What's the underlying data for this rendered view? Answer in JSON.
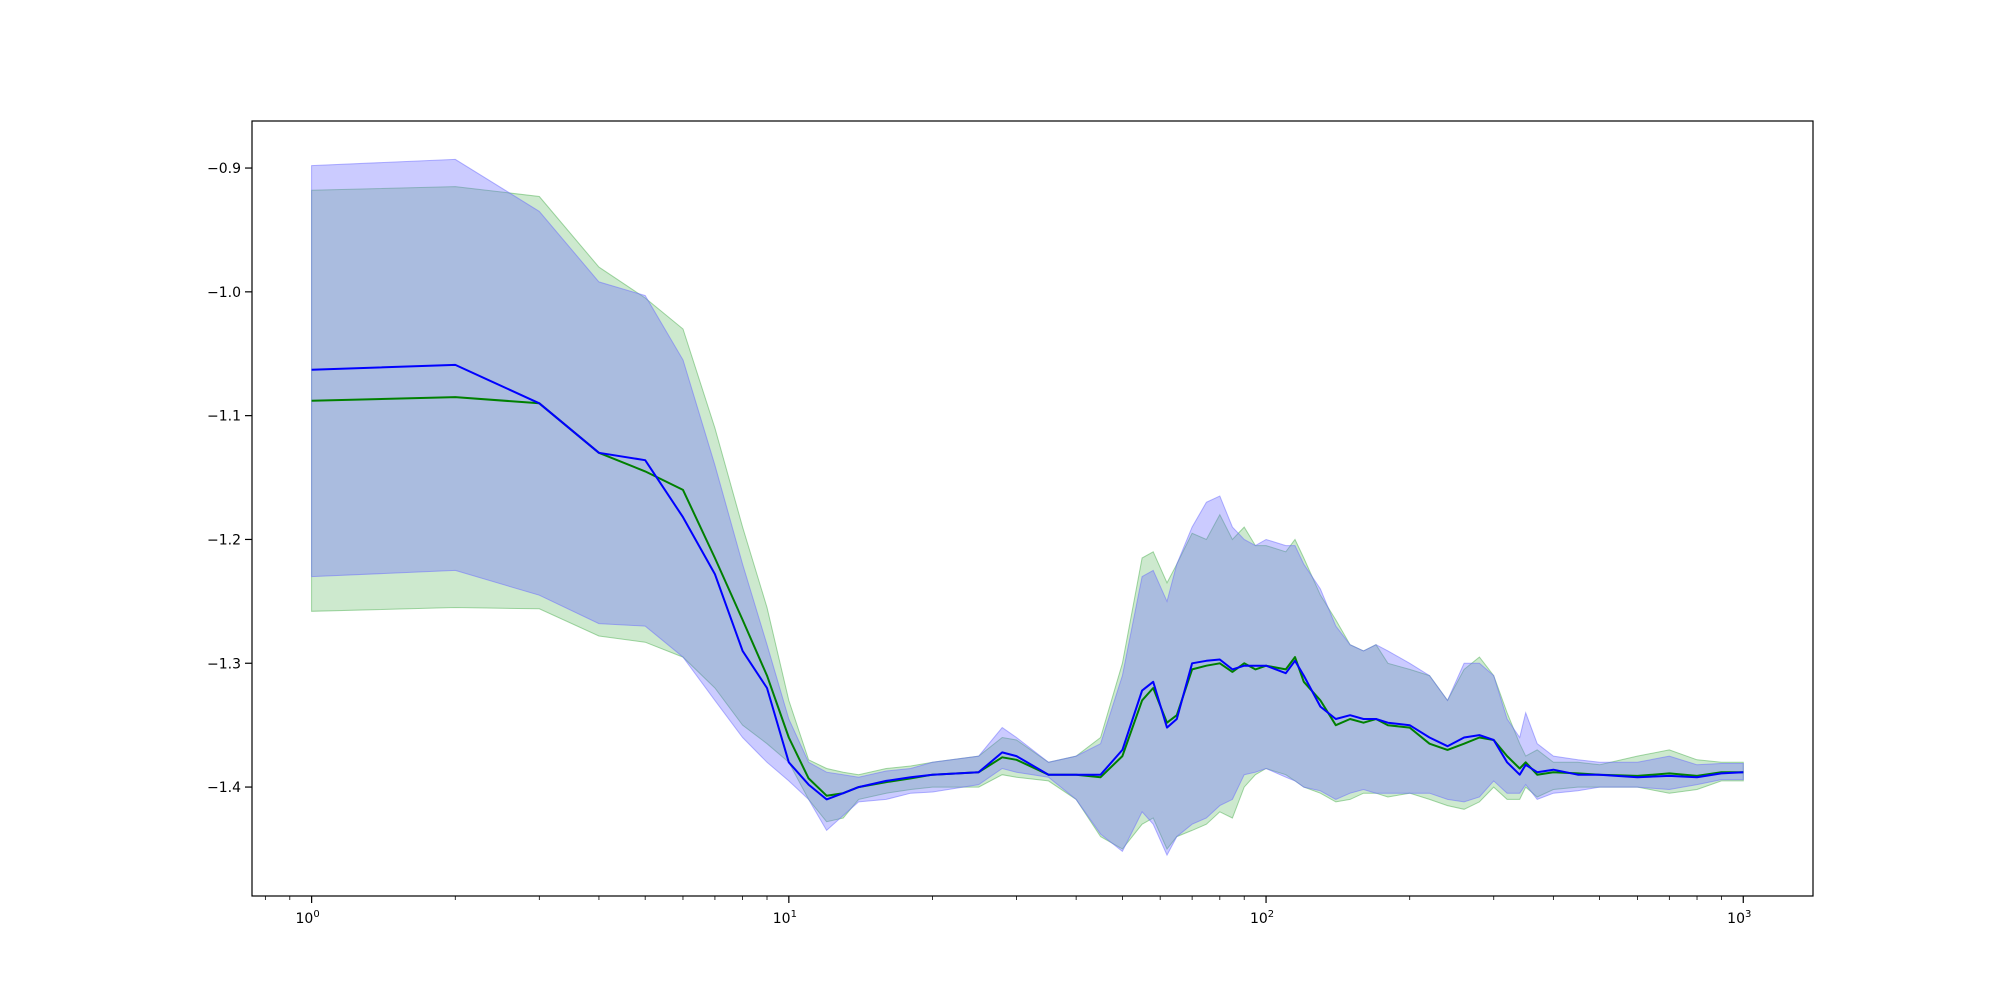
{
  "chart_data": {
    "type": "line",
    "xscale": "log",
    "xlim": [
      0.75,
      1400
    ],
    "ylim": [
      -1.488,
      -0.862
    ],
    "grid": false,
    "legend": "none",
    "title": "",
    "xlabel": "",
    "ylabel": "",
    "x_major_ticks": [
      {
        "value": 1,
        "base": "10",
        "exp": "0"
      },
      {
        "value": 10,
        "base": "10",
        "exp": "1"
      },
      {
        "value": 100,
        "base": "10",
        "exp": "2"
      },
      {
        "value": 1000,
        "base": "10",
        "exp": "3"
      }
    ],
    "y_ticks": [
      {
        "value": -0.9,
        "label": "−0.9"
      },
      {
        "value": -1.0,
        "label": "−1.0"
      },
      {
        "value": -1.1,
        "label": "−1.1"
      },
      {
        "value": -1.2,
        "label": "−1.2"
      },
      {
        "value": -1.3,
        "label": "−1.3"
      },
      {
        "value": -1.4,
        "label": "−1.4"
      }
    ],
    "series": [
      {
        "color": "#008000",
        "band_color": "#4caf50",
        "band_opacity": 0.28,
        "x": [
          1,
          2,
          3,
          4,
          5,
          6,
          7,
          8,
          9,
          10,
          11,
          12,
          13,
          14,
          16,
          18,
          20,
          25,
          28,
          30,
          35,
          40,
          45,
          50,
          55,
          58,
          62,
          65,
          70,
          75,
          80,
          85,
          90,
          95,
          100,
          110,
          115,
          120,
          130,
          140,
          150,
          160,
          170,
          180,
          200,
          220,
          240,
          260,
          280,
          300,
          320,
          340,
          350,
          370,
          400,
          450,
          500,
          600,
          700,
          800,
          900,
          1000
        ],
        "mean": [
          -1.088,
          -1.085,
          -1.09,
          -1.13,
          -1.145,
          -1.16,
          -1.215,
          -1.265,
          -1.31,
          -1.36,
          -1.393,
          -1.407,
          -1.405,
          -1.4,
          -1.396,
          -1.393,
          -1.39,
          -1.388,
          -1.376,
          -1.378,
          -1.39,
          -1.39,
          -1.392,
          -1.375,
          -1.33,
          -1.32,
          -1.348,
          -1.342,
          -1.305,
          -1.302,
          -1.3,
          -1.307,
          -1.3,
          -1.305,
          -1.302,
          -1.305,
          -1.295,
          -1.315,
          -1.33,
          -1.35,
          -1.345,
          -1.348,
          -1.345,
          -1.35,
          -1.352,
          -1.365,
          -1.37,
          -1.365,
          -1.36,
          -1.362,
          -1.375,
          -1.385,
          -1.38,
          -1.39,
          -1.388,
          -1.389,
          -1.39,
          -1.391,
          -1.389,
          -1.391,
          -1.388,
          -1.388
        ],
        "lower": [
          -1.258,
          -1.255,
          -1.256,
          -1.278,
          -1.283,
          -1.295,
          -1.32,
          -1.35,
          -1.365,
          -1.38,
          -1.41,
          -1.428,
          -1.425,
          -1.41,
          -1.405,
          -1.402,
          -1.4,
          -1.4,
          -1.39,
          -1.392,
          -1.395,
          -1.41,
          -1.44,
          -1.45,
          -1.43,
          -1.425,
          -1.45,
          -1.44,
          -1.435,
          -1.43,
          -1.42,
          -1.425,
          -1.4,
          -1.39,
          -1.385,
          -1.39,
          -1.395,
          -1.4,
          -1.405,
          -1.412,
          -1.41,
          -1.405,
          -1.405,
          -1.408,
          -1.405,
          -1.41,
          -1.415,
          -1.418,
          -1.412,
          -1.4,
          -1.41,
          -1.41,
          -1.4,
          -1.408,
          -1.402,
          -1.4,
          -1.4,
          -1.4,
          -1.405,
          -1.402,
          -1.395,
          -1.395
        ],
        "upper": [
          -0.918,
          -0.915,
          -0.923,
          -0.98,
          -1.005,
          -1.03,
          -1.11,
          -1.19,
          -1.255,
          -1.33,
          -1.378,
          -1.385,
          -1.388,
          -1.39,
          -1.385,
          -1.383,
          -1.38,
          -1.375,
          -1.36,
          -1.362,
          -1.38,
          -1.375,
          -1.36,
          -1.3,
          -1.215,
          -1.21,
          -1.235,
          -1.22,
          -1.195,
          -1.2,
          -1.18,
          -1.2,
          -1.19,
          -1.205,
          -1.205,
          -1.21,
          -1.2,
          -1.215,
          -1.245,
          -1.265,
          -1.285,
          -1.29,
          -1.285,
          -1.3,
          -1.305,
          -1.31,
          -1.33,
          -1.305,
          -1.295,
          -1.31,
          -1.34,
          -1.365,
          -1.375,
          -1.37,
          -1.38,
          -1.38,
          -1.382,
          -1.375,
          -1.37,
          -1.378,
          -1.38,
          -1.38
        ]
      },
      {
        "color": "#0000ff",
        "band_color": "#6a6aff",
        "band_opacity": 0.35,
        "x": [
          1,
          2,
          3,
          4,
          5,
          6,
          7,
          8,
          9,
          10,
          11,
          12,
          13,
          14,
          16,
          18,
          20,
          25,
          28,
          30,
          35,
          40,
          45,
          50,
          55,
          58,
          62,
          65,
          70,
          75,
          80,
          85,
          90,
          95,
          100,
          110,
          115,
          120,
          130,
          140,
          150,
          160,
          170,
          180,
          200,
          220,
          240,
          260,
          280,
          300,
          320,
          340,
          350,
          370,
          400,
          450,
          500,
          600,
          700,
          800,
          900,
          1000
        ],
        "mean": [
          -1.063,
          -1.059,
          -1.09,
          -1.13,
          -1.136,
          -1.182,
          -1.228,
          -1.29,
          -1.32,
          -1.38,
          -1.398,
          -1.41,
          -1.405,
          -1.4,
          -1.395,
          -1.392,
          -1.39,
          -1.388,
          -1.372,
          -1.375,
          -1.39,
          -1.39,
          -1.39,
          -1.37,
          -1.322,
          -1.315,
          -1.352,
          -1.345,
          -1.3,
          -1.298,
          -1.297,
          -1.305,
          -1.302,
          -1.302,
          -1.302,
          -1.308,
          -1.298,
          -1.31,
          -1.335,
          -1.345,
          -1.342,
          -1.345,
          -1.345,
          -1.348,
          -1.35,
          -1.36,
          -1.367,
          -1.36,
          -1.358,
          -1.362,
          -1.38,
          -1.39,
          -1.382,
          -1.388,
          -1.386,
          -1.39,
          -1.39,
          -1.392,
          -1.391,
          -1.392,
          -1.389,
          -1.388
        ],
        "lower": [
          -1.23,
          -1.225,
          -1.245,
          -1.268,
          -1.27,
          -1.295,
          -1.33,
          -1.36,
          -1.38,
          -1.395,
          -1.41,
          -1.435,
          -1.423,
          -1.412,
          -1.41,
          -1.405,
          -1.404,
          -1.398,
          -1.385,
          -1.388,
          -1.392,
          -1.41,
          -1.438,
          -1.452,
          -1.42,
          -1.43,
          -1.455,
          -1.44,
          -1.43,
          -1.425,
          -1.415,
          -1.41,
          -1.39,
          -1.388,
          -1.385,
          -1.392,
          -1.395,
          -1.4,
          -1.403,
          -1.41,
          -1.405,
          -1.402,
          -1.405,
          -1.405,
          -1.405,
          -1.405,
          -1.41,
          -1.412,
          -1.408,
          -1.395,
          -1.405,
          -1.405,
          -1.398,
          -1.41,
          -1.405,
          -1.403,
          -1.4,
          -1.4,
          -1.402,
          -1.398,
          -1.394,
          -1.394
        ],
        "upper": [
          -0.898,
          -0.893,
          -0.935,
          -0.992,
          -1.003,
          -1.055,
          -1.14,
          -1.22,
          -1.285,
          -1.345,
          -1.38,
          -1.388,
          -1.39,
          -1.392,
          -1.387,
          -1.385,
          -1.38,
          -1.375,
          -1.352,
          -1.36,
          -1.38,
          -1.375,
          -1.365,
          -1.31,
          -1.23,
          -1.225,
          -1.25,
          -1.22,
          -1.19,
          -1.17,
          -1.165,
          -1.19,
          -1.2,
          -1.205,
          -1.2,
          -1.205,
          -1.205,
          -1.22,
          -1.24,
          -1.27,
          -1.285,
          -1.29,
          -1.285,
          -1.29,
          -1.3,
          -1.31,
          -1.33,
          -1.3,
          -1.3,
          -1.31,
          -1.345,
          -1.36,
          -1.34,
          -1.365,
          -1.375,
          -1.378,
          -1.38,
          -1.38,
          -1.375,
          -1.382,
          -1.381,
          -1.381
        ]
      }
    ]
  }
}
